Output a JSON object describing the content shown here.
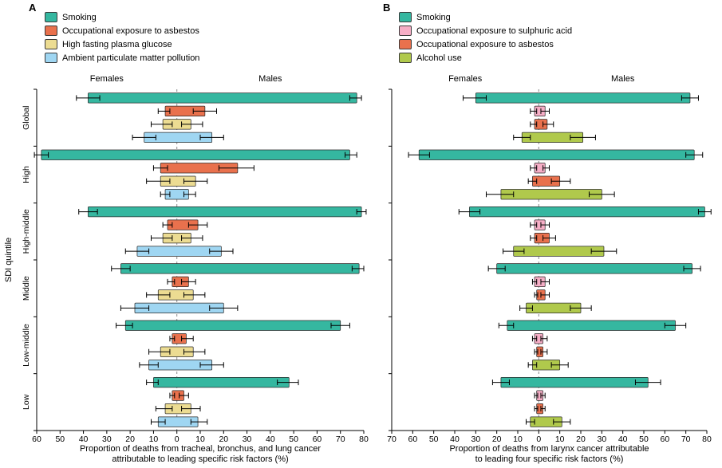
{
  "figure": {
    "background": "#ffffff",
    "y_axis_title": "SDI quintile",
    "group_labels": [
      "Global",
      "High",
      "High-middle",
      "Middle",
      "Low-middle",
      "Low"
    ],
    "panels": [
      {
        "letter": "A",
        "female_header": "Females",
        "male_header": "Males",
        "legend": [
          {
            "label": "Smoking",
            "color": "#35b7a0"
          },
          {
            "label": "Occupational exposure to asbestos",
            "color": "#e9714d"
          },
          {
            "label": "High fasting plasma glucose",
            "color": "#ecdc92"
          },
          {
            "label": "Ambient particulate matter pollution",
            "color": "#9fd6f2"
          }
        ],
        "caption_lines": [
          "Proportion of deaths from tracheal, bronchus, and lung cancer",
          "attributable to leading specific risk factors (%)"
        ]
      },
      {
        "letter": "B",
        "female_header": "Females",
        "male_header": "Males",
        "legend": [
          {
            "label": "Smoking",
            "color": "#35b7a0"
          },
          {
            "label": "Occupational exposure to sulphuric acid",
            "color": "#f6aec6"
          },
          {
            "label": "Occupational exposure to asbestos",
            "color": "#e9714d"
          },
          {
            "label": "Alcohol use",
            "color": "#b0c94c"
          }
        ],
        "caption_lines": [
          "Proportion of deaths from larynx cancer attributable",
          "to leading four specific risk factors (%)"
        ]
      }
    ]
  },
  "chart_data": [
    {
      "type": "bar",
      "subtype": "diverging-horizontal-with-error-bars",
      "panel": "A",
      "title": "",
      "xlabel": "Proportion of deaths from tracheal, bronchus, and lung cancer attributable to leading specific risk factors (%)",
      "ylabel": "SDI quintile",
      "grid": false,
      "legend_position": "top-left",
      "x_domain": [
        -60,
        80
      ],
      "x_tick_values": [
        -60,
        -50,
        -40,
        -30,
        -20,
        -10,
        0,
        10,
        20,
        30,
        40,
        50,
        60,
        70,
        80
      ],
      "x_tick_labels": [
        "60",
        "50",
        "40",
        "30",
        "20",
        "10",
        "0",
        "10",
        "20",
        "30",
        "40",
        "50",
        "60",
        "70",
        "80"
      ],
      "groups": [
        "Global",
        "High",
        "High-middle",
        "Middle",
        "Low-middle",
        "Low"
      ],
      "value_format": "[value, ci_low, ci_high] in percent; female plotted left of 0, male plotted right of 0",
      "series": [
        {
          "name": "Smoking",
          "color": "#35b7a0",
          "female": [
            [
              38,
              33,
              43
            ],
            [
              58,
              55,
              61
            ],
            [
              38,
              34,
              42
            ],
            [
              24,
              20,
              28
            ],
            [
              22,
              19,
              26
            ],
            [
              10,
              8,
              13
            ]
          ],
          "male": [
            [
              77,
              74,
              79
            ],
            [
              74,
              72,
              77
            ],
            [
              79,
              77,
              81
            ],
            [
              78,
              75,
              80
            ],
            [
              70,
              66,
              74
            ],
            [
              48,
              43,
              52
            ]
          ]
        },
        {
          "name": "Occupational exposure to asbestos",
          "color": "#e9714d",
          "female": [
            [
              5,
              3,
              8
            ],
            [
              7,
              4,
              10
            ],
            [
              4,
              2,
              6
            ],
            [
              2,
              1,
              4
            ],
            [
              2,
              1,
              3
            ],
            [
              2,
              1,
              3
            ]
          ],
          "male": [
            [
              12,
              7,
              17
            ],
            [
              26,
              18,
              33
            ],
            [
              9,
              5,
              13
            ],
            [
              5,
              2,
              8
            ],
            [
              4,
              2,
              7
            ],
            [
              3,
              1,
              5
            ]
          ]
        },
        {
          "name": "High fasting plasma glucose",
          "color": "#ecdc92",
          "female": [
            [
              6,
              2,
              11
            ],
            [
              7,
              3,
              13
            ],
            [
              6,
              2,
              11
            ],
            [
              8,
              3,
              13
            ],
            [
              7,
              3,
              12
            ],
            [
              5,
              2,
              9
            ]
          ],
          "male": [
            [
              6,
              2,
              11
            ],
            [
              8,
              3,
              13
            ],
            [
              6,
              2,
              11
            ],
            [
              7,
              3,
              12
            ],
            [
              7,
              3,
              12
            ],
            [
              6,
              2,
              10
            ]
          ]
        },
        {
          "name": "Ambient particulate matter pollution",
          "color": "#9fd6f2",
          "female": [
            [
              14,
              9,
              19
            ],
            [
              5,
              3,
              7
            ],
            [
              17,
              12,
              22
            ],
            [
              18,
              12,
              24
            ],
            [
              12,
              8,
              16
            ],
            [
              8,
              5,
              11
            ]
          ],
          "male": [
            [
              15,
              10,
              20
            ],
            [
              5,
              3,
              8
            ],
            [
              19,
              14,
              24
            ],
            [
              20,
              14,
              26
            ],
            [
              15,
              10,
              20
            ],
            [
              9,
              6,
              13
            ]
          ]
        }
      ]
    },
    {
      "type": "bar",
      "subtype": "diverging-horizontal-with-error-bars",
      "panel": "B",
      "title": "",
      "xlabel": "Proportion of deaths from larynx cancer attributable to leading four specific risk factors (%)",
      "ylabel": "SDI quintile",
      "grid": false,
      "legend_position": "top-left",
      "x_domain": [
        -70,
        80
      ],
      "x_tick_values": [
        -70,
        -60,
        -50,
        -40,
        -30,
        -20,
        -10,
        0,
        10,
        20,
        30,
        40,
        50,
        60,
        70,
        80
      ],
      "x_tick_labels": [
        "70",
        "60",
        "50",
        "40",
        "30",
        "20",
        "10",
        "0",
        "10",
        "20",
        "30",
        "40",
        "50",
        "60",
        "70",
        "80"
      ],
      "groups": [
        "Global",
        "High",
        "High-middle",
        "Middle",
        "Low-middle",
        "Low"
      ],
      "value_format": "[value, ci_low, ci_high] in percent; female plotted left of 0, male plotted right of 0",
      "series": [
        {
          "name": "Smoking",
          "color": "#35b7a0",
          "female": [
            [
              30,
              25,
              36
            ],
            [
              57,
              52,
              62
            ],
            [
              33,
              28,
              38
            ],
            [
              20,
              16,
              24
            ],
            [
              15,
              12,
              19
            ],
            [
              18,
              14,
              22
            ]
          ],
          "male": [
            [
              72,
              68,
              76
            ],
            [
              74,
              70,
              78
            ],
            [
              79,
              76,
              82
            ],
            [
              73,
              69,
              77
            ],
            [
              65,
              60,
              70
            ],
            [
              52,
              46,
              58
            ]
          ]
        },
        {
          "name": "Occupational exposure to sulphuric acid",
          "color": "#f6aec6",
          "female": [
            [
              2,
              1,
              4
            ],
            [
              2,
              1,
              4
            ],
            [
              2,
              1,
              4
            ],
            [
              2,
              1,
              3
            ],
            [
              2,
              1,
              3
            ],
            [
              1,
              0.5,
              2
            ]
          ],
          "male": [
            [
              3,
              1,
              5
            ],
            [
              3,
              2,
              5
            ],
            [
              3,
              1,
              5
            ],
            [
              3,
              1,
              5
            ],
            [
              2,
              1,
              4
            ],
            [
              2,
              1,
              3
            ]
          ]
        },
        {
          "name": "Occupational exposure to asbestos",
          "color": "#e9714d",
          "female": [
            [
              2,
              1,
              4
            ],
            [
              3,
              1,
              5
            ],
            [
              2,
              1,
              4
            ],
            [
              1,
              0.5,
              2
            ],
            [
              1,
              0.5,
              2
            ],
            [
              1,
              0.5,
              2
            ]
          ],
          "male": [
            [
              4,
              2,
              7
            ],
            [
              10,
              6,
              15
            ],
            [
              5,
              2,
              8
            ],
            [
              3,
              1,
              5
            ],
            [
              2,
              1,
              4
            ],
            [
              2,
              1,
              3
            ]
          ]
        },
        {
          "name": "Alcohol use",
          "color": "#b0c94c",
          "female": [
            [
              8,
              4,
              12
            ],
            [
              18,
              12,
              25
            ],
            [
              12,
              7,
              17
            ],
            [
              6,
              3,
              9
            ],
            [
              3,
              1,
              5
            ],
            [
              4,
              2,
              6
            ]
          ],
          "male": [
            [
              21,
              15,
              27
            ],
            [
              30,
              24,
              36
            ],
            [
              31,
              25,
              37
            ],
            [
              20,
              15,
              25
            ],
            [
              10,
              6,
              14
            ],
            [
              11,
              7,
              15
            ]
          ]
        }
      ]
    }
  ]
}
